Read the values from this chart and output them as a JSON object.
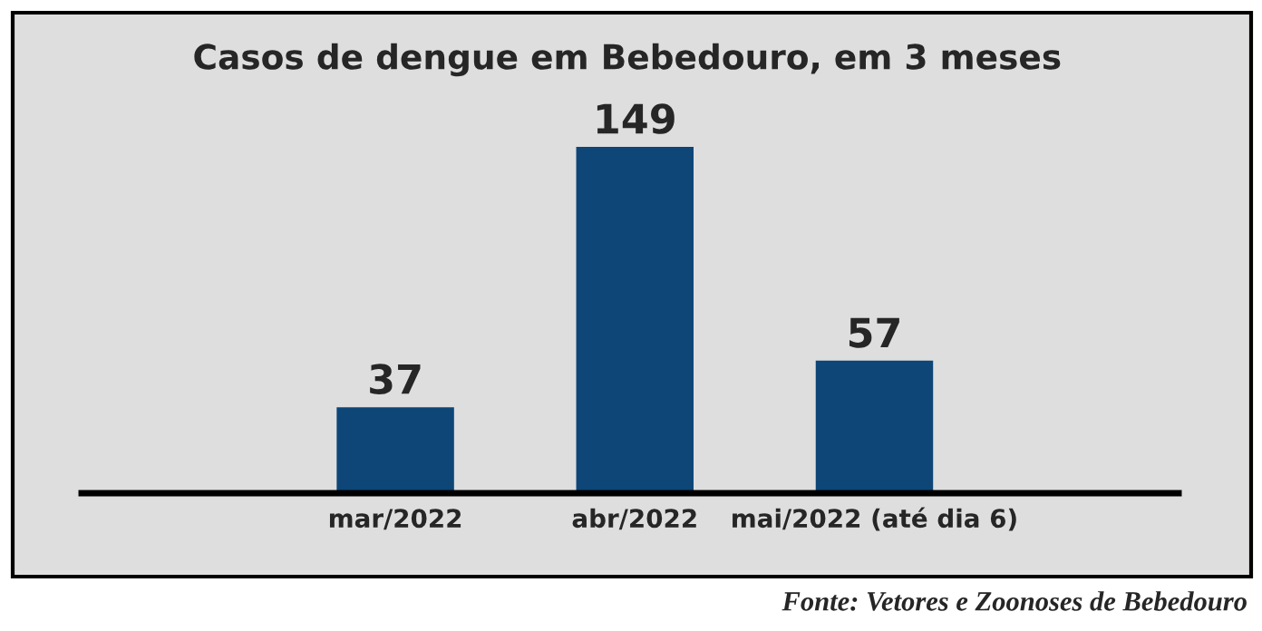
{
  "chart_data": {
    "type": "bar",
    "title": "Casos de dengue em Bebedouro, em 3 meses",
    "categories": [
      "mar/2022",
      "abr/2022",
      "mai/2022 (até dia 6)"
    ],
    "values": [
      37,
      149,
      57
    ],
    "color": "#0d4677",
    "data_labels": true,
    "grid": false,
    "legend": false,
    "annotations": [
      "Fonte: Vetores e Zoonoses de Bebedouro"
    ]
  }
}
